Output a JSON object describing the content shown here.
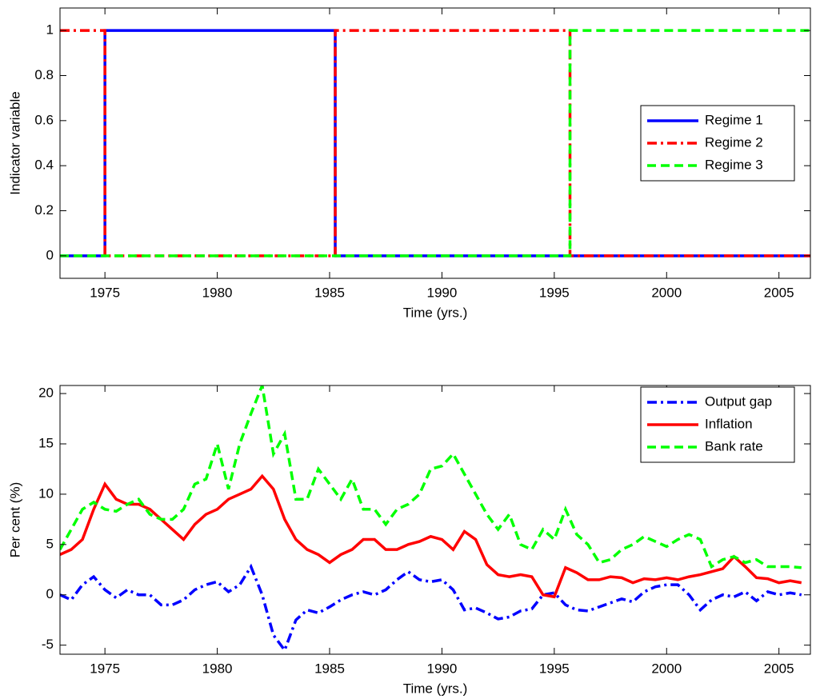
{
  "chart_data": [
    {
      "type": "line",
      "xlabel": "Time (yrs.)",
      "ylabel": "Indicator variable",
      "x": [
        1973,
        1975,
        1975,
        1985.25,
        1985.25,
        1995.7,
        1995.7,
        2006.4
      ],
      "xlim": [
        1973,
        2006.4
      ],
      "xticks": [
        1975,
        1980,
        1985,
        1990,
        1995,
        2000,
        2005
      ],
      "ylim": [
        -0.1,
        1.1
      ],
      "yticks": [
        0,
        0.2,
        0.4,
        0.6,
        0.8,
        1
      ],
      "legend": "right",
      "series": [
        {
          "name": "Regime 1",
          "color": "#0000ff",
          "linestyle": "-",
          "values": [
            0,
            0,
            1,
            1,
            0,
            0,
            0,
            0
          ]
        },
        {
          "name": "Regime 2",
          "color": "#ff0000",
          "linestyle": "-.",
          "values": [
            1,
            1,
            0,
            0,
            1,
            1,
            0,
            0
          ]
        },
        {
          "name": "Regime 3",
          "color": "#00ff00",
          "linestyle": "--",
          "values": [
            0,
            0,
            0,
            0,
            0,
            0,
            1,
            1
          ]
        }
      ]
    },
    {
      "type": "line",
      "xlabel": "Time (yrs.)",
      "ylabel": "Per cent (%)",
      "x": [
        1973,
        1973.5,
        1974,
        1974.5,
        1975,
        1975.5,
        1976,
        1976.5,
        1977,
        1977.5,
        1978,
        1978.5,
        1979,
        1979.5,
        1980,
        1980.5,
        1981,
        1981.5,
        1982,
        1982.5,
        1983,
        1983.5,
        1984,
        1984.5,
        1985,
        1985.5,
        1986,
        1986.5,
        1987,
        1987.5,
        1988,
        1988.5,
        1989,
        1989.5,
        1990,
        1990.5,
        1991,
        1991.5,
        1992,
        1992.5,
        1993,
        1993.5,
        1994,
        1994.5,
        1995,
        1995.5,
        1996,
        1996.5,
        1997,
        1997.5,
        1998,
        1998.5,
        1999,
        1999.5,
        2000,
        2000.5,
        2001,
        2001.5,
        2002,
        2002.5,
        2003,
        2003.5,
        2004,
        2004.5,
        2005,
        2005.5,
        2006
      ],
      "xlim": [
        1973,
        2006.4
      ],
      "xticks": [
        1975,
        1980,
        1985,
        1990,
        1995,
        2000,
        2005
      ],
      "ylim": [
        -5.9,
        20.8
      ],
      "yticks": [
        -5,
        0,
        5,
        10,
        15,
        20
      ],
      "legend": "upper right",
      "series": [
        {
          "name": "Output gap",
          "color": "#0000ff",
          "linestyle": "-.",
          "values": [
            0,
            -0.5,
            1,
            1.8,
            0.5,
            -0.3,
            0.5,
            0,
            0,
            -1,
            -1,
            -0.5,
            0.5,
            1,
            1.3,
            0.3,
            1,
            2.8,
            0,
            -4,
            -5.5,
            -2.5,
            -1.5,
            -1.8,
            -1.2,
            -0.5,
            0,
            0.3,
            0,
            0.5,
            1.5,
            2.3,
            1.5,
            1.3,
            1.5,
            0.5,
            -1.5,
            -1.3,
            -1.8,
            -2.4,
            -2.2,
            -1.6,
            -1.4,
            0,
            0.2,
            -1,
            -1.5,
            -1.6,
            -1.2,
            -0.8,
            -0.4,
            -0.7,
            0.3,
            0.8,
            1,
            1,
            0,
            -1.5,
            -0.5,
            0,
            -0.2,
            0.3,
            -0.6,
            0.3,
            0,
            0.2,
            0
          ]
        },
        {
          "name": "Inflation",
          "color": "#ff0000",
          "linestyle": "-",
          "values": [
            4,
            4.5,
            5.5,
            8.5,
            11,
            9.5,
            9,
            9,
            8.5,
            7.5,
            6.5,
            5.5,
            7,
            8,
            8.5,
            9.5,
            10,
            10.5,
            11.8,
            10.5,
            7.5,
            5.5,
            4.5,
            4,
            3.2,
            4,
            4.5,
            5.5,
            5.5,
            4.5,
            4.5,
            5,
            5.3,
            5.8,
            5.5,
            4.5,
            6.3,
            5.5,
            3,
            2,
            1.8,
            2,
            1.8,
            0,
            -0.2,
            2.7,
            2.2,
            1.5,
            1.5,
            1.8,
            1.7,
            1.2,
            1.6,
            1.5,
            1.7,
            1.5,
            1.8,
            2,
            2.3,
            2.6,
            3.8,
            2.8,
            1.7,
            1.6,
            1.2,
            1.4,
            1.2
          ]
        },
        {
          "name": "Bank rate",
          "color": "#00ff00",
          "linestyle": "--",
          "values": [
            4.5,
            6.5,
            8.5,
            9.2,
            8.5,
            8.3,
            9,
            9.5,
            8,
            7.5,
            7.5,
            8.5,
            11,
            11.5,
            15,
            10.5,
            15,
            18,
            20.8,
            14,
            16,
            9.5,
            9.5,
            12.5,
            11,
            9.5,
            11.5,
            8.5,
            8.5,
            7,
            8.5,
            9,
            10,
            12.5,
            12.8,
            14,
            12,
            10,
            8,
            6.5,
            8,
            5,
            4.5,
            6.5,
            5.5,
            8.5,
            6,
            5,
            3.2,
            3.5,
            4.5,
            5,
            5.8,
            5.3,
            4.8,
            5.5,
            6,
            5.5,
            2.8,
            3.5,
            3.8,
            3.2,
            3.5,
            2.8,
            2.8,
            2.8,
            2.7
          ]
        }
      ]
    }
  ]
}
